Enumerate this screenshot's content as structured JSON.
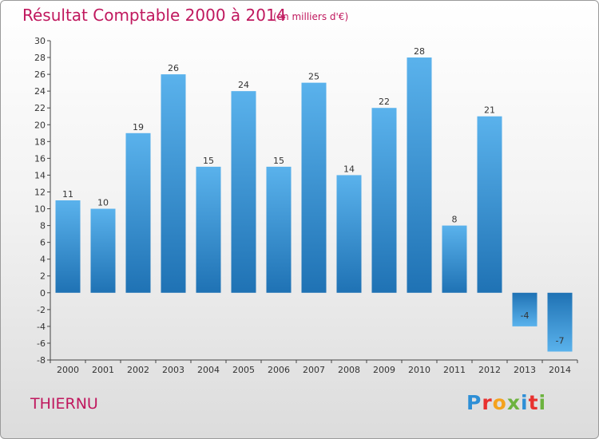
{
  "header": {
    "title": "Résultat Comptable 2000 à 2014",
    "subtitle": "(en milliers d'€)"
  },
  "footer": {
    "commune": "THIERNU",
    "logo_letters": [
      {
        "ch": "P",
        "color": "#2e8fd6"
      },
      {
        "ch": "r",
        "color": "#e8312f"
      },
      {
        "ch": "o",
        "color": "#f4a21d"
      },
      {
        "ch": "x",
        "color": "#6db33f"
      },
      {
        "ch": "i",
        "color": "#2e8fd6"
      },
      {
        "ch": "t",
        "color": "#e8312f"
      },
      {
        "ch": "i",
        "color": "#6db33f"
      }
    ]
  },
  "chart_data": {
    "type": "bar",
    "title": "Résultat Comptable 2000 à 2014",
    "subtitle": "(en milliers d'€)",
    "categories": [
      "2000",
      "2001",
      "2002",
      "2003",
      "2004",
      "2005",
      "2006",
      "2007",
      "2008",
      "2009",
      "2010",
      "2011",
      "2012",
      "2013",
      "2014"
    ],
    "values": [
      11,
      10,
      19,
      26,
      15,
      24,
      15,
      25,
      14,
      22,
      28,
      8,
      21,
      -4,
      -7
    ],
    "data_labels": [
      "11",
      "10",
      "19",
      "26",
      "15",
      "24",
      "15",
      "25",
      "14",
      "22",
      "28",
      "8",
      "21",
      "-4",
      "-7"
    ],
    "yticks": [
      "-8",
      "-6",
      "-4",
      "-2",
      "0",
      "2",
      "4",
      "6",
      "8",
      "10",
      "12",
      "14",
      "16",
      "18",
      "20",
      "22",
      "24",
      "26",
      "28",
      "30"
    ],
    "ylim": [
      -8,
      30
    ],
    "grid": false,
    "xlabel": "",
    "ylabel": "",
    "bar_color_dark": "#1f72b4",
    "bar_color_light": "#5ab2ec"
  }
}
